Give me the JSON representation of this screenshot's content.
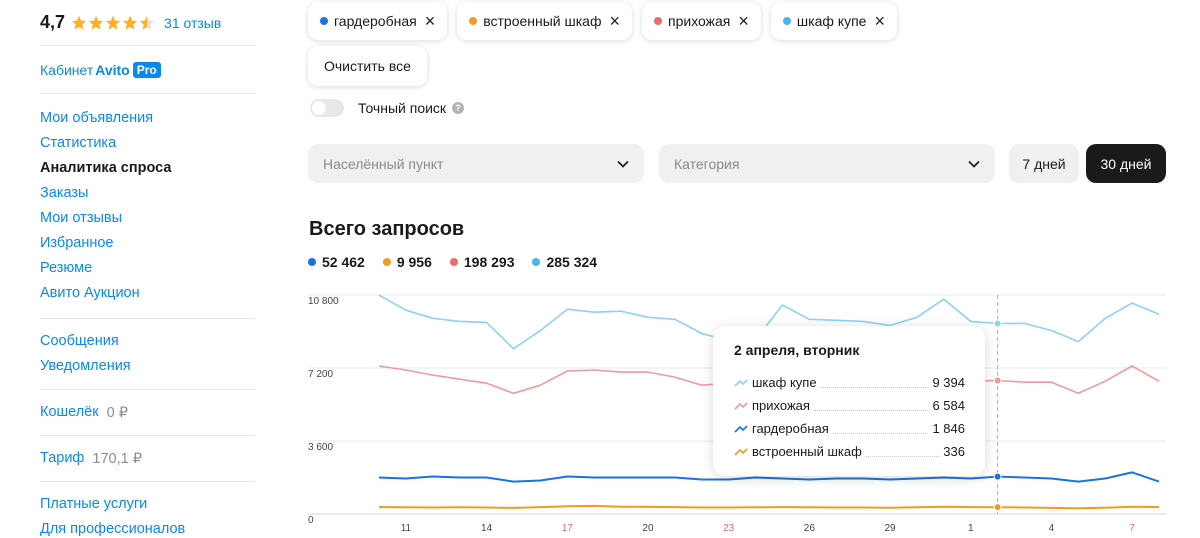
{
  "sidebar": {
    "rating": "4,7",
    "stars": 4.5,
    "reviews": "31 отзыв",
    "cabinet": "Кабинет",
    "avito": "Avito",
    "pro": "Pro",
    "nav1": [
      "Мои объявления",
      "Статистика",
      "Аналитика спроса",
      "Заказы",
      "Мои отзывы",
      "Избранное",
      "Резюме",
      "Авито Аукцион"
    ],
    "nav2": [
      "Сообщения",
      "Уведомления"
    ],
    "wallet_label": "Кошелёк",
    "wallet_value": "0 ₽",
    "tariff_label": "Тариф",
    "tariff_value": "170,1 ₽",
    "nav3": [
      "Платные услуги",
      "Для профессионалов"
    ]
  },
  "filters": {
    "chips": [
      {
        "label": "гардеробная",
        "color": "#1a73e0"
      },
      {
        "label": "встроенный шкаф",
        "color": "#f29b1d"
      },
      {
        "label": "прихожая",
        "color": "#f06a6a"
      },
      {
        "label": "шкаф купе",
        "color": "#4cb4f2"
      }
    ],
    "clear_label": "Очистить все",
    "exact_label": "Точный поиск",
    "help": "?",
    "city_placeholder": "Населённый пункт",
    "category_placeholder": "Категория",
    "period_7": "7 дней",
    "period_30": "30 дней"
  },
  "chart": {
    "title": "Всего запросов",
    "totals": [
      {
        "value": "52 462",
        "color": "#1a73e0"
      },
      {
        "value": "9 956",
        "color": "#f29b1d"
      },
      {
        "value": "198 293",
        "color": "#f06a6a"
      },
      {
        "value": "285 324",
        "color": "#4cb4f2"
      }
    ]
  },
  "chart_data": {
    "type": "line",
    "y_ticks": [
      "10 800",
      "7 200",
      "3 600",
      "0"
    ],
    "ylim": [
      0,
      10800
    ],
    "x_ticks": [
      {
        "label": "11",
        "red": false,
        "index": 1
      },
      {
        "label": "14",
        "red": false,
        "index": 4
      },
      {
        "label": "17",
        "red": true,
        "index": 7
      },
      {
        "label": "20",
        "red": false,
        "index": 10
      },
      {
        "label": "23",
        "red": true,
        "index": 13
      },
      {
        "label": "26",
        "red": false,
        "index": 16
      },
      {
        "label": "29",
        "red": false,
        "index": 19
      },
      {
        "label": "1",
        "red": false,
        "index": 22
      },
      {
        "label": "4",
        "red": false,
        "index": 25
      },
      {
        "label": "7",
        "red": true,
        "index": 28
      }
    ],
    "series": [
      {
        "name": "шкаф купе",
        "color": "#8fd0f7",
        "values": [
          10800,
          10050,
          9650,
          9500,
          9450,
          8150,
          9050,
          10100,
          9950,
          10000,
          9700,
          9600,
          8900,
          8550,
          8600,
          10300,
          9600,
          9550,
          9500,
          9300,
          9700,
          10600,
          9500,
          9394,
          9400,
          9050,
          8500,
          9650,
          10400,
          9850
        ]
      },
      {
        "name": "прихожая",
        "color": "#f29a9a",
        "values": [
          7300,
          7100,
          6850,
          6650,
          6450,
          5950,
          6350,
          7050,
          7100,
          7000,
          7000,
          6750,
          6350,
          6450,
          6700,
          6550,
          6650,
          6700,
          6600,
          6500,
          6550,
          6650,
          6550,
          6584,
          6500,
          6500,
          5950,
          6550,
          7300,
          6550
        ]
      },
      {
        "name": "гардеробная",
        "color": "#1a73e0",
        "values": [
          1800,
          1750,
          1850,
          1800,
          1800,
          1600,
          1650,
          1850,
          1800,
          1800,
          1800,
          1800,
          1700,
          1700,
          1800,
          1750,
          1700,
          1750,
          1750,
          1700,
          1750,
          1800,
          1750,
          1846,
          1800,
          1750,
          1600,
          1750,
          2050,
          1600
        ]
      },
      {
        "name": "встроенный шкаф",
        "color": "#f29b1d",
        "values": [
          340,
          330,
          320,
          330,
          320,
          300,
          340,
          380,
          400,
          360,
          350,
          340,
          320,
          320,
          330,
          340,
          330,
          320,
          320,
          310,
          330,
          360,
          340,
          336,
          320,
          300,
          280,
          310,
          360,
          340
        ]
      }
    ],
    "highlight_index": 23
  },
  "tooltip": {
    "title": "2 апреля, вторник",
    "rows": [
      {
        "label": "шкаф купе",
        "value": "9 394",
        "color": "#8fd0f7"
      },
      {
        "label": "прихожая",
        "value": "6 584",
        "color": "#f29a9a"
      },
      {
        "label": "гардеробная",
        "value": "1 846",
        "color": "#1a73e0"
      },
      {
        "label": "встроенный шкаф",
        "value": "336",
        "color": "#f29b1d"
      }
    ]
  }
}
